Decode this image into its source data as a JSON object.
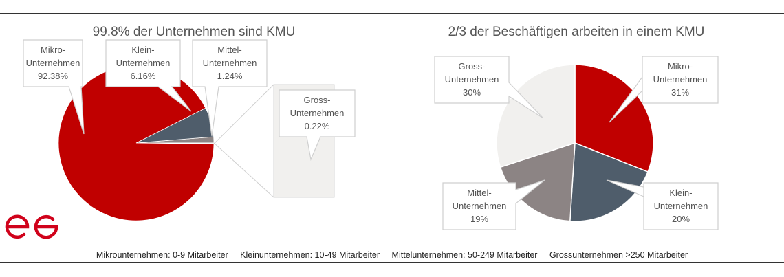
{
  "colors": {
    "mikro": "#c00000",
    "klein": "#4f5d6b",
    "mittel": "#8c8484",
    "gross": "#f1f0ee",
    "logo": "#d0021b"
  },
  "chart_data": [
    {
      "type": "pie",
      "title": "99.8% der Unternehmen sind KMU",
      "slices": [
        {
          "label_lines": [
            "Mikro-",
            "Unternehmen"
          ],
          "value_text": "92.38%",
          "value": 92.38
        },
        {
          "label_lines": [
            "Klein-",
            "Unternehmen"
          ],
          "value_text": "6.16%",
          "value": 6.16
        },
        {
          "label_lines": [
            "Mittel-",
            "Unternehmen"
          ],
          "value_text": "1.24%",
          "value": 1.24
        },
        {
          "label_lines": [
            "Gross-",
            "Unternehmen"
          ],
          "value_text": "0.22%",
          "value": 0.22
        }
      ],
      "exploded_detail": "Gross-Unternehmen"
    },
    {
      "type": "pie",
      "title": "2/3 der Beschäftigen arbeiten in einem KMU",
      "slices": [
        {
          "label_lines": [
            "Mikro-",
            "Unternehmen"
          ],
          "value_text": "31%",
          "value": 31
        },
        {
          "label_lines": [
            "Klein-",
            "Unternehmen"
          ],
          "value_text": "20%",
          "value": 20
        },
        {
          "label_lines": [
            "Mittel-",
            "Unternehmen"
          ],
          "value_text": "19%",
          "value": 19
        },
        {
          "label_lines": [
            "Gross-",
            "Unternehmen"
          ],
          "value_text": "30%",
          "value": 30
        }
      ]
    }
  ],
  "legend": {
    "mikro": "Mikrounternehmen: 0-9 Mitarbeiter",
    "klein": "Kleinunternehmen: 10-49 Mitarbeiter",
    "mittel": "Mittelunternehmen: 50-249 Mitarbeiter",
    "gross": "Grossunternehmen >250 Mitarbeiter"
  }
}
